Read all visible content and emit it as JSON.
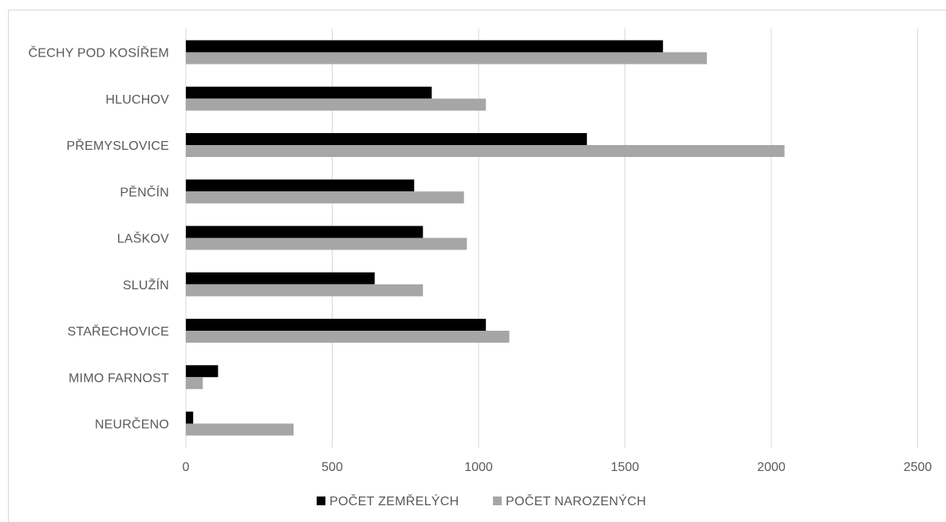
{
  "chart_data": {
    "type": "bar",
    "orientation": "horizontal",
    "categories": [
      "ČECHY POD KOSÍŘEM",
      "HLUCHOV",
      "PŘEMYSLOVICE",
      "PĚNČÍN",
      "LAŠKOV",
      "SLUŽÍN",
      "STAŘECHOVICE",
      "MIMO FARNOST",
      "NEURČENO"
    ],
    "series": [
      {
        "name": "POČET ZEMŘELÝCH",
        "color": "#000000",
        "values": [
          1630,
          840,
          1370,
          780,
          810,
          645,
          1025,
          110,
          25
        ]
      },
      {
        "name": "POČET NAROZENÝCH",
        "color": "#a6a6a6",
        "values": [
          1780,
          1025,
          2045,
          950,
          960,
          810,
          1105,
          58,
          368
        ]
      }
    ],
    "xlim": [
      0,
      2500
    ],
    "xticks": [
      0,
      500,
      1000,
      1500,
      2000,
      2500
    ],
    "grid": true,
    "legend_position": "bottom",
    "title": "",
    "xlabel": "",
    "ylabel": ""
  }
}
